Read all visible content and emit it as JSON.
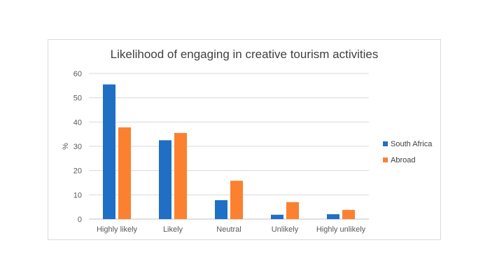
{
  "chart_data": {
    "type": "bar",
    "title": "Likelihood of engaging in creative tourism activities",
    "xlabel": "",
    "ylabel": "%",
    "ylim": [
      0,
      60
    ],
    "yticks": [
      0,
      10,
      20,
      30,
      40,
      50,
      60
    ],
    "grid": true,
    "legend_position": "right",
    "categories": [
      "Highly likely",
      "Likely",
      "Neutral",
      "Unlikely",
      "Highly unlikely"
    ],
    "series": [
      {
        "name": "South Africa",
        "color": "#1f6fc5",
        "values": [
          55.5,
          32.5,
          7.8,
          1.8,
          2.0
        ]
      },
      {
        "name": "Abroad",
        "color": "#fb8130",
        "values": [
          37.8,
          35.5,
          15.8,
          7.0,
          3.8
        ]
      }
    ]
  }
}
